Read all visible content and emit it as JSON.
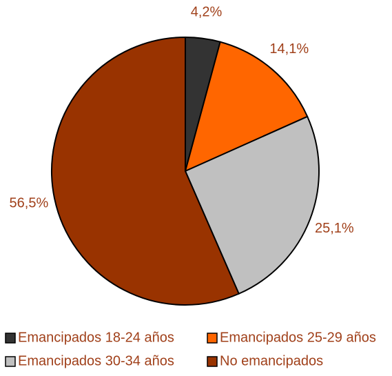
{
  "chart_data": {
    "type": "pie",
    "categories": [
      "Emancipados 18-24 años",
      "Emancipados 25-29 años",
      "Emancipados 30-34 años",
      "No emancipados"
    ],
    "values": [
      4.2,
      14.1,
      25.1,
      56.5
    ],
    "value_labels": [
      "4,2%",
      "14,1%",
      "25,1%",
      "56,5%"
    ],
    "colors": [
      "#333333",
      "#ff6600",
      "#c0c0c0",
      "#993300"
    ],
    "legend": "bottom"
  }
}
